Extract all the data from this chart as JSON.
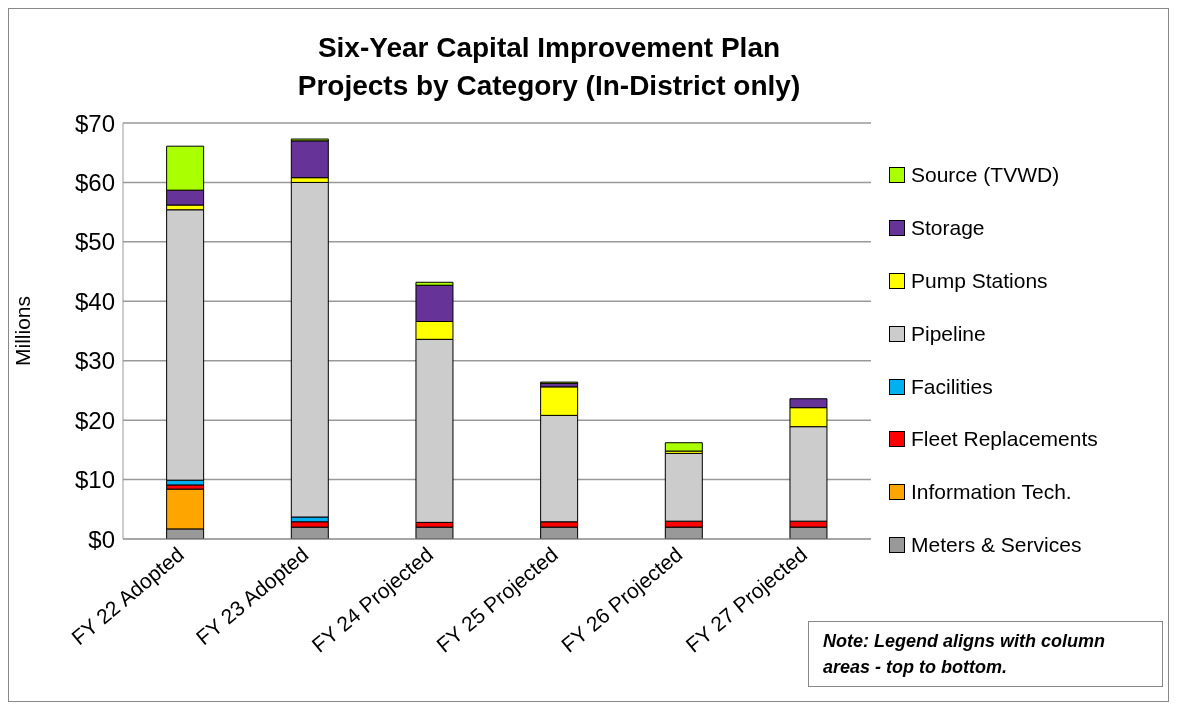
{
  "chart_data": {
    "type": "bar",
    "stacked": true,
    "title": "Six-Year Capital Improvement Plan\nProjects by Category (In-District only)",
    "ylabel": "Millions",
    "categories": [
      "FY 22 Adopted",
      "FY 23 Adopted",
      "FY 24 Projected",
      "FY 25 Projected",
      "FY 26 Projected",
      "FY 27 Projected"
    ],
    "series": [
      {
        "name": "Meters & Services",
        "color": "#999999",
        "values": [
          1.7,
          2.0,
          2.0,
          2.0,
          2.0,
          2.0
        ]
      },
      {
        "name": "Information Tech.",
        "color": "#ffa500",
        "values": [
          6.7,
          0,
          0,
          0,
          0,
          0
        ]
      },
      {
        "name": "Fleet Replacements",
        "color": "#ff0000",
        "values": [
          0.7,
          0.9,
          0.8,
          0.9,
          1.0,
          1.0
        ]
      },
      {
        "name": "Facilities",
        "color": "#00b0f0",
        "values": [
          0.8,
          0.8,
          0,
          0,
          0,
          0
        ]
      },
      {
        "name": "Pipeline",
        "color": "#cccccc",
        "values": [
          45.5,
          56.3,
          30.8,
          17.9,
          11.4,
          15.9
        ]
      },
      {
        "name": "Pump Stations",
        "color": "#ffff00",
        "values": [
          0.8,
          0.8,
          3.0,
          4.8,
          0.4,
          3.2
        ]
      },
      {
        "name": "Storage",
        "color": "#663399",
        "values": [
          2.5,
          6.2,
          6.1,
          0.6,
          null,
          1.5
        ]
      },
      {
        "name": "Source (TVWD)",
        "color": "#aaff00",
        "values": [
          7.4,
          0.3,
          0.5,
          0.2,
          1.4,
          0
        ]
      }
    ],
    "ylim": [
      0,
      70
    ],
    "yticks": [
      {
        "value": 0,
        "label": "$0"
      },
      {
        "value": 10,
        "label": "$10"
      },
      {
        "value": 20,
        "label": "$20"
      },
      {
        "value": 30,
        "label": "$30"
      },
      {
        "value": 40,
        "label": "$40"
      },
      {
        "value": 50,
        "label": "$50"
      },
      {
        "value": 60,
        "label": "$60"
      },
      {
        "value": 70,
        "label": "$70"
      }
    ],
    "grid": "y",
    "legend": "right",
    "annotations": [
      "Note: Legend aligns with column areas - top to bottom."
    ]
  }
}
